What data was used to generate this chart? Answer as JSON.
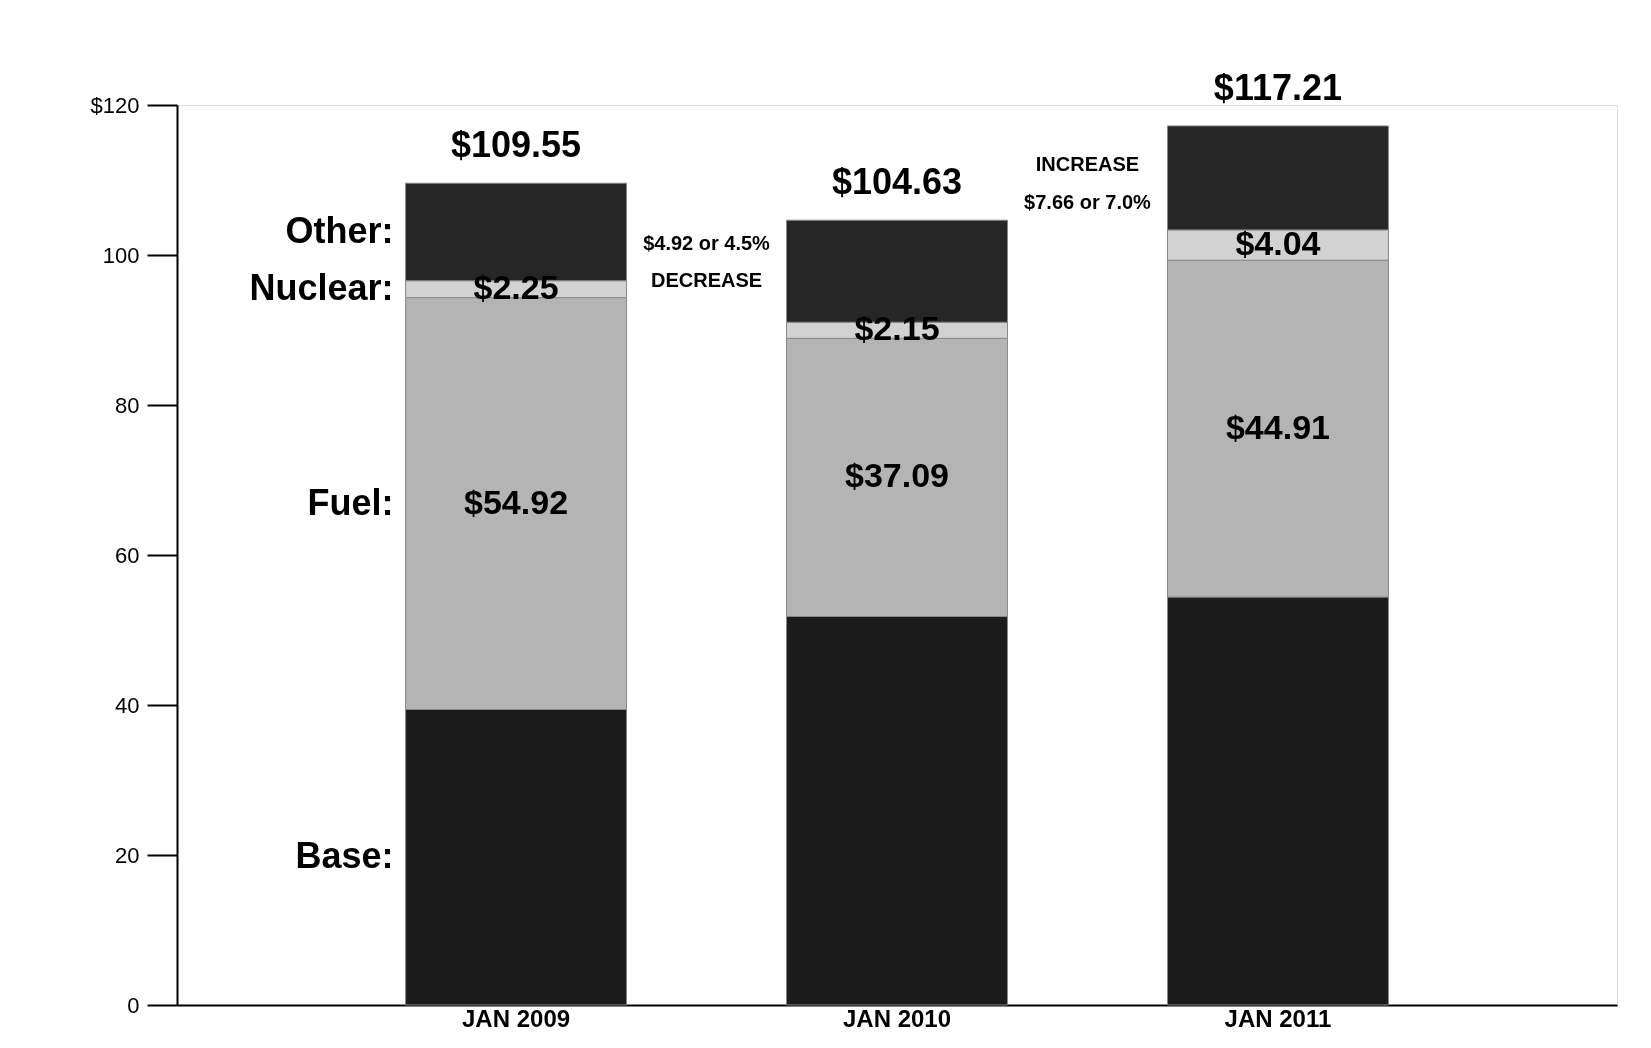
{
  "chart_data": {
    "type": "bar",
    "stacked": true,
    "categories": [
      "JAN 2009",
      "JAN 2010",
      "JAN 2011"
    ],
    "series": [
      {
        "name": "Base:",
        "color": "#1c1c1c",
        "values": [
          39.4,
          51.8,
          54.4
        ]
      },
      {
        "name": "Fuel:",
        "color": "#b4b4b4",
        "values": [
          54.92,
          37.09,
          44.91
        ],
        "value_labels": [
          "$54.92",
          "$37.09",
          "$44.91"
        ]
      },
      {
        "name": "Nuclear:",
        "color": "#d2d2d2",
        "values": [
          2.25,
          2.15,
          4.04
        ],
        "value_labels": [
          "$2.25",
          "$2.15",
          "$4.04"
        ]
      },
      {
        "name": "Other:",
        "color": "#262626",
        "values": [
          13.0,
          13.6,
          13.86
        ]
      }
    ],
    "totals": [
      "$109.55",
      "$104.63",
      "$117.21"
    ],
    "ylim": [
      0,
      120
    ],
    "yticks": [
      0,
      20,
      40,
      60,
      80,
      100,
      {
        "value": 120,
        "label": "$120"
      }
    ],
    "grid": false,
    "annotations": [
      "$4.92 or 4.5%",
      "DECREASE",
      "INCREASE",
      "$7.66 or 7.0%"
    ]
  }
}
